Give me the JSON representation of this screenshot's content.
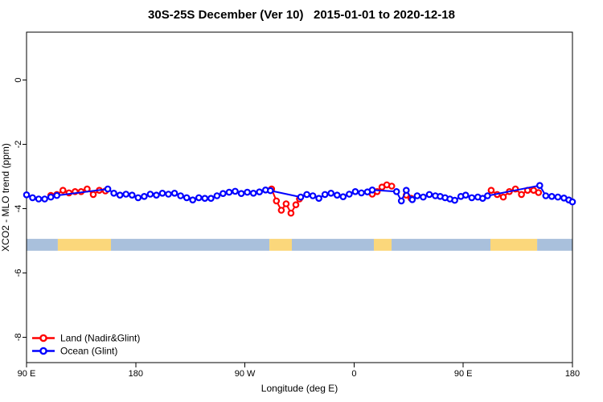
{
  "chart_data": {
    "type": "line",
    "title": "30S-25S December (Ver 10)   2015-01-01 to 2020-12-18",
    "xlabel": "Longitude (deg E)",
    "ylabel": "XCO2 - MLO trend (ppm)",
    "xlim": [
      90,
      540
    ],
    "ylim": [
      -8.79,
      1.49
    ],
    "grid": false,
    "x_ticks": [
      {
        "lon": 90,
        "label": "90 E"
      },
      {
        "lon": 180,
        "label": "180"
      },
      {
        "lon": 270,
        "label": "90 W"
      },
      {
        "lon": 360,
        "label": "0"
      },
      {
        "lon": 450,
        "label": "90 E"
      },
      {
        "lon": 540,
        "label": "180"
      }
    ],
    "y_ticks": [
      {
        "value": 0,
        "label": "0"
      },
      {
        "value": -2,
        "label": "-2"
      },
      {
        "value": -4,
        "label": "-4"
      },
      {
        "value": -6,
        "label": "-6"
      },
      {
        "value": -8,
        "label": "-8"
      }
    ],
    "land_ocean_band": {
      "top": -4.94,
      "bottom": -5.31,
      "land_color": "#fbd77b",
      "ocean_color": "#a9c0dc",
      "segments": [
        {
          "type": "ocean",
          "from": 90,
          "to": 115.8
        },
        {
          "type": "land",
          "from": 115.8,
          "to": 159.6
        },
        {
          "type": "ocean",
          "from": 159.6,
          "to": 290.2
        },
        {
          "type": "land",
          "from": 290.2,
          "to": 308.7
        },
        {
          "type": "ocean",
          "from": 308.7,
          "to": 376.3
        },
        {
          "type": "land",
          "from": 376.3,
          "to": 390.9
        },
        {
          "type": "ocean",
          "from": 390.9,
          "to": 472.4
        },
        {
          "type": "land",
          "from": 472.4,
          "to": 510.9
        },
        {
          "type": "ocean",
          "from": 510.9,
          "to": 540
        }
      ]
    },
    "series": [
      {
        "name": "Land (Nadir&Glint)",
        "color": "#ff0000",
        "segments": [
          [
            [
              110,
              -3.59
            ],
            [
              115,
              -3.56
            ],
            [
              120,
              -3.43
            ],
            [
              125,
              -3.51
            ],
            [
              130,
              -3.47
            ],
            [
              135,
              -3.47
            ],
            [
              140,
              -3.39
            ],
            [
              145,
              -3.56
            ],
            [
              150,
              -3.43
            ],
            [
              155,
              -3.45
            ]
          ],
          [
            [
              292,
              -3.39
            ],
            [
              296,
              -3.76
            ],
            [
              300,
              -4.05
            ],
            [
              304,
              -3.85
            ],
            [
              308,
              -4.14
            ],
            [
              312,
              -3.88
            ],
            [
              315,
              -3.7
            ]
          ],
          [
            [
              375,
              -3.55
            ],
            [
              379,
              -3.47
            ],
            [
              383,
              -3.33
            ],
            [
              387,
              -3.26
            ],
            [
              391,
              -3.3
            ]
          ],
          [
            [
              403,
              -3.58
            ],
            [
              407,
              -3.68
            ]
          ],
          [
            [
              473,
              -3.43
            ],
            [
              478,
              -3.56
            ],
            [
              483,
              -3.64
            ],
            [
              488,
              -3.47
            ],
            [
              493,
              -3.39
            ],
            [
              498,
              -3.56
            ],
            [
              503,
              -3.43
            ],
            [
              508,
              -3.43
            ],
            [
              512,
              -3.5
            ]
          ]
        ]
      },
      {
        "name": "Ocean (Glint)",
        "color": "#0000ff",
        "segments": [
          [
            [
              90,
              -3.57
            ],
            [
              95,
              -3.66
            ],
            [
              100,
              -3.7
            ],
            [
              105,
              -3.7
            ],
            [
              110,
              -3.64
            ],
            [
              115,
              -3.59
            ],
            [
              157,
              -3.39
            ],
            [
              162,
              -3.52
            ],
            [
              167,
              -3.58
            ],
            [
              172,
              -3.55
            ],
            [
              177,
              -3.58
            ],
            [
              182,
              -3.66
            ],
            [
              187,
              -3.62
            ],
            [
              192,
              -3.55
            ],
            [
              197,
              -3.58
            ],
            [
              202,
              -3.52
            ],
            [
              207,
              -3.55
            ],
            [
              212,
              -3.52
            ],
            [
              217,
              -3.6
            ],
            [
              222,
              -3.66
            ],
            [
              227,
              -3.73
            ],
            [
              232,
              -3.66
            ],
            [
              237,
              -3.68
            ],
            [
              242,
              -3.68
            ],
            [
              247,
              -3.6
            ],
            [
              252,
              -3.53
            ],
            [
              257,
              -3.49
            ],
            [
              262,
              -3.46
            ],
            [
              267,
              -3.53
            ],
            [
              272,
              -3.49
            ],
            [
              277,
              -3.52
            ],
            [
              282,
              -3.48
            ],
            [
              287,
              -3.42
            ],
            [
              291,
              -3.44
            ],
            [
              316,
              -3.64
            ],
            [
              321,
              -3.56
            ],
            [
              326,
              -3.6
            ],
            [
              331,
              -3.68
            ],
            [
              336,
              -3.56
            ],
            [
              341,
              -3.52
            ],
            [
              346,
              -3.58
            ],
            [
              351,
              -3.63
            ],
            [
              356,
              -3.55
            ],
            [
              361,
              -3.47
            ],
            [
              366,
              -3.51
            ],
            [
              371,
              -3.48
            ],
            [
              375,
              -3.42
            ],
            [
              395,
              -3.47
            ],
            [
              399,
              -3.76
            ],
            [
              403,
              -3.43
            ],
            [
              408,
              -3.72
            ],
            [
              412,
              -3.6
            ],
            [
              417,
              -3.64
            ],
            [
              422,
              -3.56
            ],
            [
              427,
              -3.6
            ],
            [
              431,
              -3.62
            ],
            [
              435,
              -3.66
            ],
            [
              439,
              -3.7
            ],
            [
              443,
              -3.74
            ],
            [
              448,
              -3.62
            ],
            [
              452,
              -3.58
            ],
            [
              457,
              -3.66
            ],
            [
              462,
              -3.64
            ],
            [
              466,
              -3.68
            ],
            [
              470,
              -3.6
            ],
            [
              513,
              -3.28
            ],
            [
              518,
              -3.6
            ],
            [
              523,
              -3.62
            ],
            [
              528,
              -3.64
            ],
            [
              533,
              -3.67
            ],
            [
              537,
              -3.73
            ],
            [
              540,
              -3.79
            ]
          ]
        ]
      }
    ],
    "legend": {
      "position": "bottom-left",
      "entries": [
        "Land (Nadir&Glint)",
        "Ocean (Glint)"
      ]
    }
  }
}
